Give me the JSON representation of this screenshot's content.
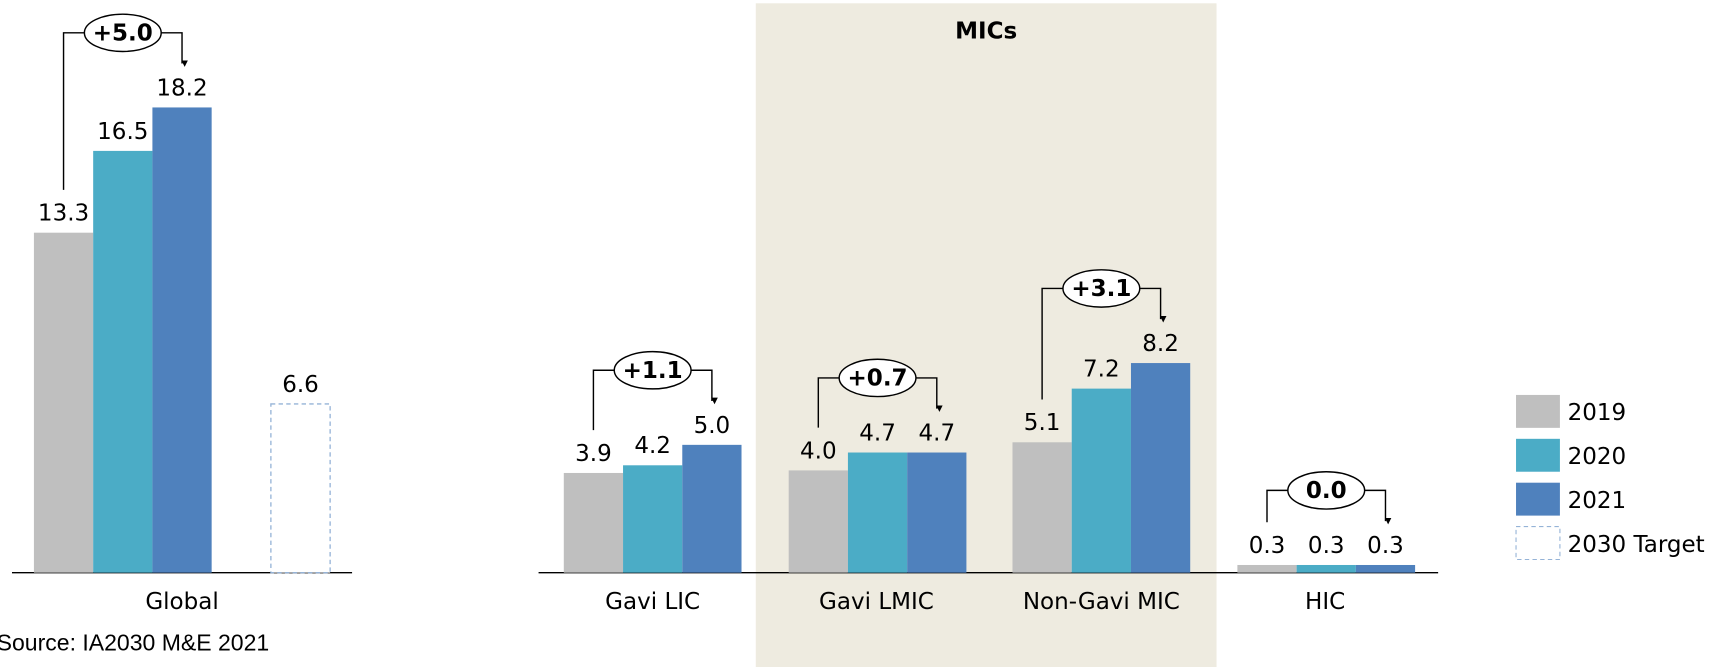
{
  "chart_data": {
    "type": "bar",
    "categories": [
      "Global",
      "Gavi LIC",
      "Gavi LMIC",
      "Non-Gavi MIC",
      "HIC"
    ],
    "series": [
      {
        "name": "2019",
        "color": "#bfbfbf",
        "values": [
          13.3,
          3.9,
          4.0,
          5.1,
          0.3
        ],
        "value_labels": [
          "13.3",
          "3.9",
          "4.0",
          "5.1",
          "0.3"
        ]
      },
      {
        "name": "2020",
        "color": "#4bacc6",
        "values": [
          16.5,
          4.2,
          4.7,
          7.2,
          0.3
        ],
        "value_labels": [
          "16.5",
          "4.2",
          "4.7",
          "7.2",
          "0.3"
        ]
      },
      {
        "name": "2021",
        "color": "#4f81bd",
        "values": [
          18.2,
          5.0,
          4.7,
          8.2,
          0.3
        ],
        "value_labels": [
          "18.2",
          "5.0",
          "4.7",
          "8.2",
          "0.3"
        ]
      },
      {
        "name": "2030 Target",
        "color": "#95b3d7",
        "values": [
          6.6,
          null,
          null,
          null,
          null
        ],
        "value_labels": [
          "6.6",
          null,
          null,
          null,
          null
        ]
      }
    ],
    "annotations": [
      "+5.0",
      "+1.1",
      "+0.7",
      "+3.1",
      "0.0"
    ],
    "region_label": "MICs",
    "ylim": [
      0,
      20
    ],
    "source": "Source: IA2030 M&E 2021"
  }
}
